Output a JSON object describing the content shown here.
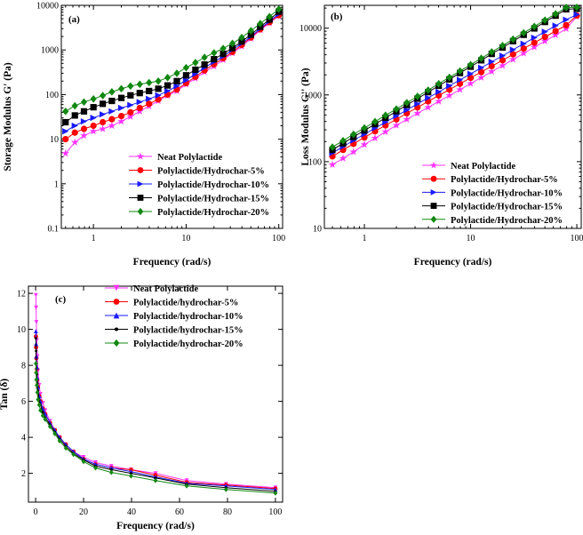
{
  "colors": {
    "neat": "#ff33ff",
    "hc5": "#ff0000",
    "hc10": "#1a1aff",
    "hc15": "#000000",
    "hc20": "#118811"
  },
  "chart_data": [
    {
      "id": "a",
      "type": "scatter",
      "panel_label": "(a)",
      "xscale": "log",
      "yscale": "log",
      "xlabel": "Frequency (rad/s)",
      "ylabel": "Storage Modulus G' (Pa)",
      "xlim": [
        0.45,
        110
      ],
      "ylim": [
        0.1,
        10000
      ],
      "xticks": [
        1,
        10,
        100
      ],
      "xtick_labels": [
        "1",
        "10",
        "100"
      ],
      "yticks": [
        0.1,
        1,
        10,
        100,
        1000,
        10000
      ],
      "ytick_labels": [
        "0.1",
        "1",
        "10",
        "100",
        "1000",
        "10000"
      ],
      "legend_position": "bottom-right",
      "x": [
        0.5,
        0.63,
        0.79,
        1.0,
        1.26,
        1.58,
        2.0,
        2.51,
        3.16,
        3.98,
        5.01,
        6.31,
        7.94,
        10.0,
        12.6,
        15.8,
        20.0,
        25.1,
        31.6,
        39.8,
        50.1,
        63.1,
        79.4,
        100.0
      ],
      "series": [
        {
          "name": "Neat Polylactide",
          "marker": "star",
          "color_key": "neat",
          "values": [
            4.8,
            8.5,
            12,
            15,
            17,
            20,
            25,
            32,
            42,
            55,
            72,
            95,
            120,
            170,
            230,
            320,
            430,
            600,
            850,
            1200,
            1800,
            2800,
            4000,
            5800
          ]
        },
        {
          "name": "Polylactide/Hydrochar-5%",
          "marker": "circle",
          "color_key": "hc5",
          "values": [
            10,
            14,
            17,
            20,
            24,
            28,
            33,
            40,
            50,
            62,
            78,
            100,
            130,
            180,
            250,
            350,
            480,
            650,
            900,
            1300,
            1900,
            2900,
            4200,
            6000
          ]
        },
        {
          "name": "Polylactide/Hydrochar-10%",
          "marker": "triangle-right",
          "color_key": "hc10",
          "values": [
            15,
            20,
            25,
            30,
            36,
            42,
            50,
            58,
            68,
            80,
            96,
            120,
            155,
            210,
            290,
            400,
            540,
            720,
            1000,
            1400,
            2000,
            3000,
            4400,
            6400
          ]
        },
        {
          "name": "Polylactide/Hydrochar-15%",
          "marker": "square",
          "color_key": "hc15",
          "values": [
            24,
            34,
            42,
            52,
            62,
            72,
            84,
            96,
            108,
            120,
            135,
            160,
            200,
            270,
            360,
            470,
            620,
            820,
            1100,
            1550,
            2200,
            3300,
            4800,
            7200
          ]
        },
        {
          "name": "Polylactide/Hydrochar-20%",
          "marker": "diamond",
          "color_key": "hc20",
          "values": [
            42,
            56,
            68,
            80,
            95,
            115,
            135,
            155,
            170,
            185,
            200,
            240,
            300,
            400,
            520,
            680,
            860,
            1080,
            1400,
            1900,
            2700,
            3900,
            5600,
            8200
          ]
        }
      ]
    },
    {
      "id": "b",
      "type": "scatter",
      "panel_label": "(b)",
      "xscale": "log",
      "yscale": "log",
      "xlabel": "Frequency (rad/s)",
      "ylabel": "Loss Modulus G'' (Pa)",
      "xlim": [
        0.42,
        110
      ],
      "ylim": [
        10,
        22000
      ],
      "xticks": [
        1,
        10,
        100
      ],
      "xtick_labels": [
        "1",
        "10",
        "100"
      ],
      "yticks": [
        10,
        100,
        1000,
        10000
      ],
      "ytick_labels": [
        "10",
        "100",
        "1000",
        "10000"
      ],
      "legend_position": "bottom-right",
      "x": [
        0.5,
        0.63,
        0.79,
        1.0,
        1.26,
        1.58,
        2.0,
        2.51,
        3.16,
        3.98,
        5.01,
        6.31,
        7.94,
        10.0,
        12.6,
        15.8,
        20.0,
        25.1,
        31.6,
        39.8,
        50.1,
        63.1,
        79.4,
        100.0
      ],
      "series": [
        {
          "name": "Neat Polylactide",
          "marker": "star",
          "color_key": "neat",
          "values": [
            90,
            112,
            140,
            180,
            225,
            280,
            350,
            430,
            530,
            650,
            800,
            980,
            1200,
            1480,
            1820,
            2240,
            2750,
            3400,
            4200,
            5200,
            6400,
            7900,
            9800,
            15000
          ]
        },
        {
          "name": "Polylactide/Hydrochar-5%",
          "marker": "circle",
          "color_key": "hc5",
          "values": [
            120,
            150,
            185,
            230,
            285,
            350,
            430,
            530,
            650,
            800,
            980,
            1200,
            1470,
            1800,
            2200,
            2700,
            3300,
            4050,
            4950,
            6050,
            7400,
            9050,
            11100,
            15500
          ]
        },
        {
          "name": "Polylactide/Hydrochar-10%",
          "marker": "triangle-right",
          "color_key": "hc10",
          "values": [
            135,
            168,
            208,
            258,
            318,
            392,
            483,
            595,
            733,
            903,
            1110,
            1370,
            1680,
            2070,
            2550,
            3140,
            3860,
            4750,
            5850,
            7200,
            8850,
            10900,
            13400,
            16000
          ]
        },
        {
          "name": "Polylactide/Hydrochar-15%",
          "marker": "square",
          "color_key": "hc15",
          "values": [
            150,
            188,
            235,
            293,
            365,
            455,
            567,
            707,
            880,
            1100,
            1370,
            1710,
            2130,
            2650,
            3300,
            4120,
            5130,
            6390,
            7960,
            9920,
            12400,
            15400,
            19200,
            19500
          ]
        },
        {
          "name": "Polylactide/Hydrochar-20%",
          "marker": "diamond",
          "color_key": "hc20",
          "values": [
            165,
            206,
            257,
            320,
            398,
            495,
            615,
            765,
            950,
            1180,
            1470,
            1830,
            2280,
            2840,
            3540,
            4410,
            5490,
            6840,
            8520,
            10600,
            13200,
            16400,
            20400,
            20500
          ]
        }
      ]
    },
    {
      "id": "c",
      "type": "line",
      "panel_label": "(c)",
      "xscale": "linear",
      "yscale": "linear",
      "xlabel": "Frequency (rad/s)",
      "ylabel": "Tan (δ)",
      "xlim": [
        -3,
        103
      ],
      "ylim": [
        0.4,
        12.4
      ],
      "xticks": [
        0,
        20,
        40,
        60,
        80,
        100
      ],
      "xtick_labels": [
        "0",
        "20",
        "40",
        "60",
        "80",
        "100"
      ],
      "yticks": [
        2,
        4,
        6,
        8,
        10,
        12
      ],
      "ytick_labels": [
        "2",
        "4",
        "6",
        "8",
        "10",
        "12"
      ],
      "legend_position": "top-right",
      "x": [
        0.1,
        0.2,
        0.3,
        0.5,
        0.7,
        1.0,
        1.5,
        2.0,
        3.0,
        4.0,
        6.0,
        8.0,
        10.0,
        12.6,
        15.8,
        20.0,
        25.0,
        31.6,
        39.8,
        50.0,
        63.0,
        79.4,
        100.0
      ],
      "series": [
        {
          "name": "Neat Polylactide",
          "marker": "triangle-down",
          "color_key": "neat",
          "values": [
            11.9,
            11.2,
            10.4,
            9.4,
            8.5,
            7.7,
            6.9,
            6.4,
            5.9,
            5.5,
            4.9,
            4.4,
            4.0,
            3.6,
            3.2,
            2.9,
            2.6,
            2.4,
            2.2,
            2.0,
            1.6,
            1.4,
            1.2
          ]
        },
        {
          "name": "Polylactide/hydrochar-5%",
          "marker": "circle",
          "color_key": "hc5",
          "values": [
            9.6,
            9.0,
            8.4,
            7.8,
            7.2,
            6.8,
            6.3,
            6.0,
            5.6,
            5.3,
            4.8,
            4.4,
            4.0,
            3.6,
            3.2,
            2.8,
            2.5,
            2.3,
            2.2,
            1.9,
            1.5,
            1.35,
            1.15
          ]
        },
        {
          "name": "Polylactide/hydrochar-10%",
          "marker": "triangle-up",
          "color_key": "hc10",
          "values": [
            9.9,
            9.2,
            8.5,
            7.9,
            7.3,
            6.8,
            6.3,
            6.0,
            5.6,
            5.3,
            4.8,
            4.4,
            4.0,
            3.6,
            3.2,
            2.8,
            2.5,
            2.3,
            2.1,
            1.8,
            1.45,
            1.3,
            1.1
          ]
        },
        {
          "name": "Polylactide/hydrochar-15%",
          "marker": "dot",
          "color_key": "hc15",
          "values": [
            9.5,
            8.8,
            8.1,
            7.5,
            7.0,
            6.6,
            6.1,
            5.8,
            5.4,
            5.1,
            4.7,
            4.3,
            3.9,
            3.5,
            3.1,
            2.75,
            2.4,
            2.2,
            2.0,
            1.75,
            1.4,
            1.2,
            1.0
          ]
        },
        {
          "name": "Polylactide/hydrochar-20%",
          "marker": "diamond",
          "color_key": "hc20",
          "values": [
            8.1,
            7.6,
            7.2,
            6.9,
            6.5,
            6.1,
            5.8,
            5.5,
            5.2,
            5.0,
            4.6,
            4.2,
            3.8,
            3.4,
            3.05,
            2.65,
            2.3,
            2.05,
            1.85,
            1.6,
            1.3,
            1.1,
            0.9
          ]
        }
      ]
    }
  ]
}
